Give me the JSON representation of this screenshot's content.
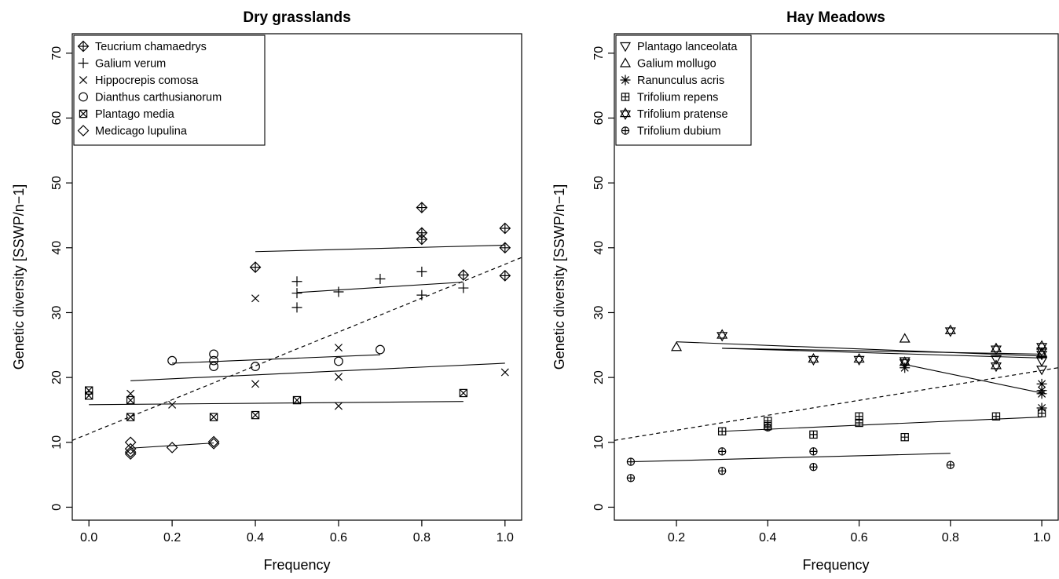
{
  "chart_data": [
    {
      "type": "scatter",
      "title": "Dry grasslands",
      "xlabel": "Frequency",
      "ylabel": "Genetic diversity [SSWP/n−1]",
      "xlim": [
        -0.04,
        1.04
      ],
      "ylim": [
        -2,
        73
      ],
      "xticks": [
        "0.0",
        "0.2",
        "0.4",
        "0.6",
        "0.8",
        "1.0"
      ],
      "yticks": [
        "0",
        "10",
        "20",
        "30",
        "40",
        "50",
        "60",
        "70"
      ],
      "legend_position": "top-left",
      "series": [
        {
          "name": "Teucrium chamaedrys",
          "marker": "circle-plus",
          "points": [
            [
              0.4,
              37
            ],
            [
              0.8,
              46.2
            ],
            [
              0.8,
              42.3
            ],
            [
              0.8,
              41.3
            ],
            [
              0.9,
              35.8
            ],
            [
              1.0,
              43
            ],
            [
              1.0,
              40
            ],
            [
              1.0,
              35.7
            ]
          ],
          "fit": {
            "x": [
              0.4,
              1.0
            ],
            "y": [
              39.4,
              40.4
            ]
          }
        },
        {
          "name": "Galium verum",
          "marker": "plus",
          "points": [
            [
              0.5,
              34.8
            ],
            [
              0.5,
              33
            ],
            [
              0.5,
              30.8
            ],
            [
              0.6,
              33.2
            ],
            [
              0.7,
              35.2
            ],
            [
              0.8,
              36.3
            ],
            [
              0.8,
              32.7
            ],
            [
              0.9,
              33.8
            ]
          ],
          "fit": {
            "x": [
              0.5,
              0.9
            ],
            "y": [
              33.1,
              34.7
            ]
          }
        },
        {
          "name": "Hippocrepis comosa",
          "marker": "cross",
          "points": [
            [
              0.1,
              17.5
            ],
            [
              0.2,
              15.8
            ],
            [
              0.4,
              32.2
            ],
            [
              0.4,
              19
            ],
            [
              0.6,
              24.6
            ],
            [
              0.6,
              20.1
            ],
            [
              0.6,
              15.6
            ],
            [
              1.0,
              20.8
            ]
          ],
          "fit": {
            "x": [
              0.1,
              1.0
            ],
            "y": [
              19.5,
              22.2
            ]
          }
        },
        {
          "name": "Dianthus carthusianorum",
          "marker": "circle",
          "points": [
            [
              0.2,
              22.6
            ],
            [
              0.3,
              23.6
            ],
            [
              0.3,
              22.6
            ],
            [
              0.3,
              21.7
            ],
            [
              0.4,
              21.7
            ],
            [
              0.6,
              22.5
            ],
            [
              0.7,
              24.3
            ]
          ],
          "fit": {
            "x": [
              0.2,
              0.7
            ],
            "y": [
              22.2,
              23.5
            ]
          }
        },
        {
          "name": "Plantago media",
          "marker": "square-x",
          "points": [
            [
              0.0,
              18
            ],
            [
              0.0,
              17.2
            ],
            [
              0.1,
              16.5
            ],
            [
              0.1,
              13.9
            ],
            [
              0.3,
              13.9
            ],
            [
              0.4,
              14.2
            ],
            [
              0.5,
              16.5
            ],
            [
              0.9,
              17.6
            ]
          ],
          "fit": {
            "x": [
              0.0,
              0.9
            ],
            "y": [
              15.8,
              16.3
            ]
          }
        },
        {
          "name": "Medicago lupulina",
          "marker": "diamond",
          "points": [
            [
              0.1,
              10
            ],
            [
              0.1,
              9
            ],
            [
              0.1,
              8.5
            ],
            [
              0.1,
              8.2
            ],
            [
              0.2,
              9.2
            ],
            [
              0.3,
              10.1
            ],
            [
              0.3,
              9.8
            ]
          ],
          "fit": {
            "x": [
              0.1,
              0.3
            ],
            "y": [
              9.1,
              9.9
            ]
          }
        }
      ],
      "overall_fit": {
        "x": [
          -0.04,
          1.04
        ],
        "y": [
          10.3,
          38.5
        ],
        "style": "dashed"
      }
    },
    {
      "type": "scatter",
      "title": "Hay Meadows",
      "xlabel": "Frequency",
      "ylabel": "Genetic diversity [SSWP/n−1]",
      "xlim": [
        0.064,
        1.036
      ],
      "ylim": [
        -2,
        73
      ],
      "xticks": [
        "0.2",
        "0.4",
        "0.6",
        "0.8",
        "1.0"
      ],
      "yticks": [
        "0",
        "10",
        "20",
        "30",
        "40",
        "50",
        "60",
        "70"
      ],
      "legend_position": "top-left",
      "series": [
        {
          "name": "Plantago lanceolata",
          "marker": "triangle-down",
          "points": [
            [
              0.7,
              22.5
            ],
            [
              0.9,
              22.8
            ],
            [
              1.0,
              24
            ],
            [
              1.0,
              22.5
            ],
            [
              1.0,
              21.2
            ]
          ],
          "fit": {
            "x": [
              0.3,
              1.0
            ],
            "y": [
              24.5,
              23
            ]
          }
        },
        {
          "name": "Galium mollugo",
          "marker": "triangle-up",
          "points": [
            [
              0.2,
              24.7
            ],
            [
              0.7,
              26
            ],
            [
              0.9,
              24.5
            ],
            [
              1.0,
              23.8
            ]
          ],
          "fit": {
            "x": [
              0.2,
              1.0
            ],
            "y": [
              25.5,
              23.3
            ]
          }
        },
        {
          "name": "Ranunculus acris",
          "marker": "star",
          "points": [
            [
              0.7,
              21.5
            ],
            [
              1.0,
              19
            ],
            [
              1.0,
              18
            ],
            [
              1.0,
              17.5
            ],
            [
              1.0,
              15.3
            ]
          ],
          "fit": {
            "x": [
              0.7,
              1.0
            ],
            "y": [
              22,
              17.6
            ]
          }
        },
        {
          "name": "Trifolium repens",
          "marker": "square-plus",
          "points": [
            [
              0.3,
              11.7
            ],
            [
              0.4,
              13.3
            ],
            [
              0.4,
              12.5
            ],
            [
              0.5,
              11.2
            ],
            [
              0.6,
              14
            ],
            [
              0.6,
              13
            ],
            [
              0.7,
              10.8
            ],
            [
              0.9,
              14
            ],
            [
              1.0,
              14.5
            ]
          ],
          "fit": {
            "x": [
              0.3,
              1.0
            ],
            "y": [
              11.7,
              13.9
            ]
          }
        },
        {
          "name": "Trifolium pratense",
          "marker": "star-of-david",
          "points": [
            [
              0.3,
              26.5
            ],
            [
              0.5,
              22.8
            ],
            [
              0.6,
              22.8
            ],
            [
              0.7,
              22.3
            ],
            [
              0.8,
              27.2
            ],
            [
              0.9,
              24.4
            ],
            [
              0.9,
              21.8
            ],
            [
              1.0,
              24.8
            ],
            [
              1.0,
              23.6
            ]
          ],
          "fit": {
            "x": [
              0.3,
              1.0
            ],
            "y": [
              24.5,
              23.6
            ]
          }
        },
        {
          "name": "Trifolium dubium",
          "marker": "circle-plus-small",
          "points": [
            [
              0.1,
              7
            ],
            [
              0.1,
              4.5
            ],
            [
              0.3,
              8.6
            ],
            [
              0.3,
              5.6
            ],
            [
              0.4,
              12.3
            ],
            [
              0.5,
              8.6
            ],
            [
              0.5,
              6.2
            ],
            [
              0.8,
              6.5
            ]
          ],
          "fit": {
            "x": [
              0.1,
              0.8
            ],
            "y": [
              7,
              8.3
            ]
          }
        }
      ],
      "overall_fit": {
        "x": [
          0.064,
          1.036
        ],
        "y": [
          10.3,
          21.5
        ],
        "style": "dashed"
      }
    }
  ]
}
